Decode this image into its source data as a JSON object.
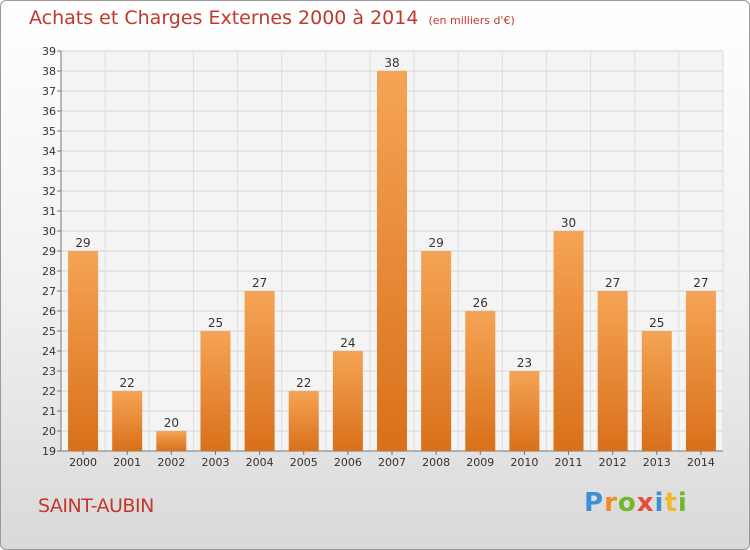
{
  "chart_data": {
    "type": "bar",
    "title": "Achats et Charges Externes 2000 à 2014",
    "subtitle": "(en milliers d'€)",
    "xlabel": "",
    "ylabel": "",
    "categories": [
      "2000",
      "2001",
      "2002",
      "2003",
      "2004",
      "2005",
      "2006",
      "2007",
      "2008",
      "2009",
      "2010",
      "2011",
      "2012",
      "2013",
      "2014"
    ],
    "values": [
      29,
      22,
      20,
      25,
      27,
      22,
      24,
      38,
      29,
      26,
      23,
      30,
      27,
      25,
      27
    ],
    "ylim": [
      19,
      39
    ],
    "yticks": [
      19,
      20,
      21,
      22,
      23,
      24,
      25,
      26,
      27,
      28,
      29,
      30,
      31,
      32,
      33,
      34,
      35,
      36,
      37,
      38,
      39
    ],
    "grid": true,
    "bar_color": "#f0913a"
  },
  "location": "SAINT-AUBIN",
  "brand": {
    "letters": [
      "P",
      "r",
      "o",
      "x",
      "i",
      "t",
      "i"
    ],
    "colors": [
      "#3d8fd6",
      "#f08a24",
      "#73b72c",
      "#e84c3d",
      "#3d8fd6",
      "#f0b824",
      "#73b72c"
    ]
  }
}
